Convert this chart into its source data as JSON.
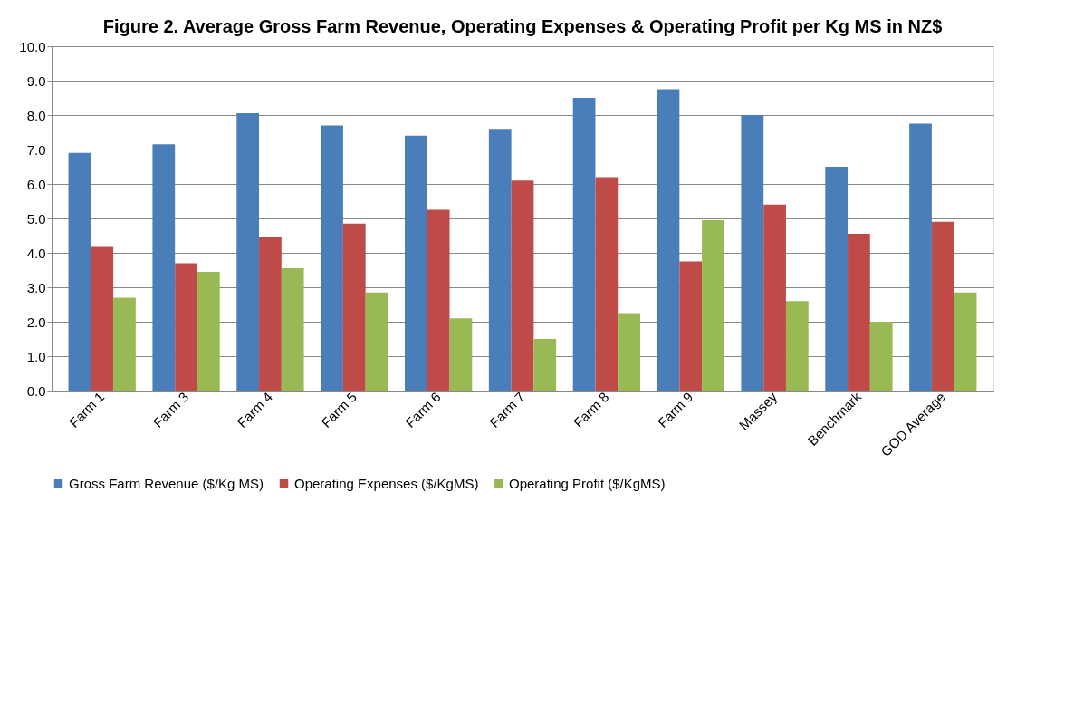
{
  "chart_data": {
    "type": "bar",
    "title": "Figure 2. Average Gross Farm Revenue, Operating Expenses & Operating Profit per Kg MS in NZ$",
    "categories": [
      "Farm 1",
      "Farm 3",
      "Farm 4",
      "Farm 5",
      "Farm 6",
      "Farm 7",
      "Farm 8",
      "Farm 9",
      "Massey",
      "Benchmark",
      "GOD Average"
    ],
    "series": [
      {
        "name": "Gross Farm Revenue ($/Kg MS)",
        "color": "#4a7ebb",
        "values": [
          6.9,
          7.15,
          8.05,
          7.7,
          7.4,
          7.6,
          8.5,
          8.75,
          8.0,
          6.5,
          7.75
        ]
      },
      {
        "name": "Operating Expenses ($/KgMS)",
        "color": "#be4b48",
        "values": [
          4.2,
          3.7,
          4.45,
          4.85,
          5.25,
          6.1,
          6.2,
          3.75,
          5.4,
          4.55,
          4.9
        ]
      },
      {
        "name": "Operating Profit ($/KgMS)",
        "color": "#98b954",
        "values": [
          2.7,
          3.45,
          3.55,
          2.85,
          2.1,
          1.5,
          2.25,
          4.95,
          2.6,
          2.0,
          2.85
        ]
      }
    ],
    "ylim": [
      0,
      10
    ],
    "yticks": [
      {
        "value": 0,
        "label": "0.0"
      },
      {
        "value": 1,
        "label": "1.0"
      },
      {
        "value": 2,
        "label": "2.0"
      },
      {
        "value": 3,
        "label": "3.0"
      },
      {
        "value": 4,
        "label": "4.0"
      },
      {
        "value": 5,
        "label": "5.0"
      },
      {
        "value": 6,
        "label": "6.0"
      },
      {
        "value": 7,
        "label": "7.0"
      },
      {
        "value": 8,
        "label": "8.0"
      },
      {
        "value": 9,
        "label": "9.0"
      },
      {
        "value": 10,
        "label": "10.0"
      }
    ],
    "grid": "y",
    "legend": "bottom"
  }
}
